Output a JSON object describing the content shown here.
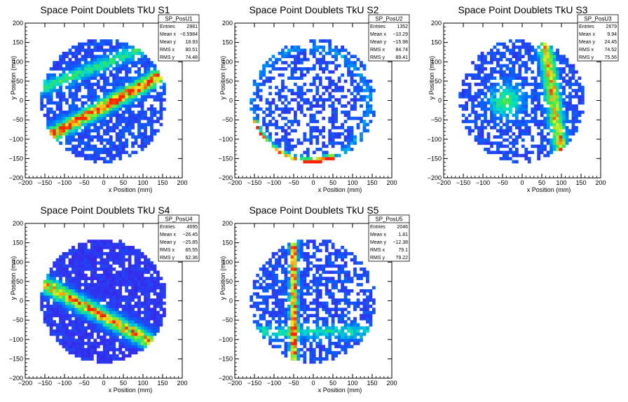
{
  "colors": {
    "low": "#3f1fe8",
    "mid": "#00ddcc",
    "high": "#ff2200",
    "frame": "#000000"
  },
  "chart_data": [
    {
      "type": "heatmap",
      "title": "Space Point Doublets TkU S1",
      "xlabel": "x Position (mm)",
      "ylabel": "y Position (mm)",
      "xlim": [
        -200,
        200
      ],
      "ylim": [
        -200,
        200
      ],
      "xticks": [
        "−200",
        "−150",
        "−100",
        "−50",
        "0",
        "50",
        "100",
        "150",
        "200"
      ],
      "yticks": [
        "−200",
        "−150",
        "−100",
        "−50",
        "0",
        "50",
        "100",
        "150",
        "200"
      ],
      "grid": false,
      "stats": {
        "name": "SP_PosU1",
        "rows": [
          {
            "label": "Entries",
            "value": "2881"
          },
          {
            "label": "Mean x",
            "value": "−0.5984"
          },
          {
            "label": "Mean y",
            "value": "18.93"
          },
          {
            "label": "RMS x",
            "value": "80.51"
          },
          {
            "label": "RMS y",
            "value": "74.48"
          }
        ]
      },
      "mean_x": -0.5984,
      "mean_y": 18.93,
      "rms_x": 80.51,
      "rms_y": 74.48,
      "entries": 2881
    },
    {
      "type": "heatmap",
      "title": "Space Point Doublets TkU S2",
      "xlabel": "x Position (mm)",
      "ylabel": "y Position (mm)",
      "xlim": [
        -200,
        200
      ],
      "ylim": [
        -200,
        200
      ],
      "xticks": [
        "−200",
        "−150",
        "−100",
        "−50",
        "0",
        "50",
        "100",
        "150",
        "200"
      ],
      "yticks": [
        "−200",
        "−150",
        "−100",
        "−50",
        "0",
        "50",
        "100",
        "150",
        "200"
      ],
      "grid": false,
      "stats": {
        "name": "SP_PosU2",
        "rows": [
          {
            "label": "Entries",
            "value": "1352"
          },
          {
            "label": "Mean x",
            "value": "−10.29"
          },
          {
            "label": "Mean y",
            "value": "−15.98"
          },
          {
            "label": "RMS x",
            "value": "84.74"
          },
          {
            "label": "RMS y",
            "value": "89.41"
          }
        ]
      },
      "mean_x": -10.29,
      "mean_y": -15.98,
      "rms_x": 84.74,
      "rms_y": 89.41,
      "entries": 1352
    },
    {
      "type": "heatmap",
      "title": "Space Point Doublets TkU S3",
      "xlabel": "x Position (mm)",
      "ylabel": "y Position (mm)",
      "xlim": [
        -200,
        200
      ],
      "ylim": [
        -200,
        200
      ],
      "xticks": [
        "−200",
        "−150",
        "−100",
        "−50",
        "0",
        "50",
        "100",
        "150",
        "200"
      ],
      "yticks": [
        "−200",
        "−150",
        "−100",
        "−50",
        "0",
        "50",
        "100",
        "150",
        "200"
      ],
      "grid": false,
      "stats": {
        "name": "SP_PosU3",
        "rows": [
          {
            "label": "Entries",
            "value": "2679"
          },
          {
            "label": "Mean x",
            "value": "9.94"
          },
          {
            "label": "Mean y",
            "value": "24.45"
          },
          {
            "label": "RMS x",
            "value": "74.52"
          },
          {
            "label": "RMS y",
            "value": "75.56"
          }
        ]
      },
      "mean_x": 9.94,
      "mean_y": 24.45,
      "rms_x": 74.52,
      "rms_y": 75.56,
      "entries": 2679
    },
    {
      "type": "heatmap",
      "title": "Space Point Doublets TkU S4",
      "xlabel": "x Position (mm)",
      "ylabel": "y Position (mm)",
      "xlim": [
        -200,
        200
      ],
      "ylim": [
        -200,
        200
      ],
      "xticks": [
        "−200",
        "−150",
        "−100",
        "−50",
        "0",
        "50",
        "100",
        "150",
        "200"
      ],
      "yticks": [
        "−200",
        "−150",
        "−100",
        "−50",
        "0",
        "50",
        "100",
        "150",
        "200"
      ],
      "grid": false,
      "stats": {
        "name": "SP_PosU4",
        "rows": [
          {
            "label": "Entries",
            "value": "4695"
          },
          {
            "label": "Mean x",
            "value": "−26.45"
          },
          {
            "label": "Mean y",
            "value": "−25.85"
          },
          {
            "label": "RMS x",
            "value": "65.55"
          },
          {
            "label": "RMS y",
            "value": "62.36"
          }
        ]
      },
      "mean_x": -26.45,
      "mean_y": -25.85,
      "rms_x": 65.55,
      "rms_y": 62.36,
      "entries": 4695
    },
    {
      "type": "heatmap",
      "title": "Space Point Doublets TkU S5",
      "xlabel": "x Position (mm)",
      "ylabel": "y Position (mm)",
      "xlim": [
        -200,
        200
      ],
      "ylim": [
        -200,
        200
      ],
      "xticks": [
        "−200",
        "−150",
        "−100",
        "−50",
        "0",
        "50",
        "100",
        "150",
        "200"
      ],
      "yticks": [
        "−200",
        "−150",
        "−100",
        "−50",
        "0",
        "50",
        "100",
        "150",
        "200"
      ],
      "grid": false,
      "stats": {
        "name": "SP_PosU5",
        "rows": [
          {
            "label": "Entries",
            "value": "2046"
          },
          {
            "label": "Mean x",
            "value": "1.81"
          },
          {
            "label": "Mean y",
            "value": "−12.38"
          },
          {
            "label": "RMS x",
            "value": "79.1"
          },
          {
            "label": "RMS y",
            "value": "79.22"
          }
        ]
      },
      "mean_x": 1.81,
      "mean_y": -12.38,
      "rms_x": 79.1,
      "rms_y": 79.22,
      "entries": 2046
    }
  ]
}
